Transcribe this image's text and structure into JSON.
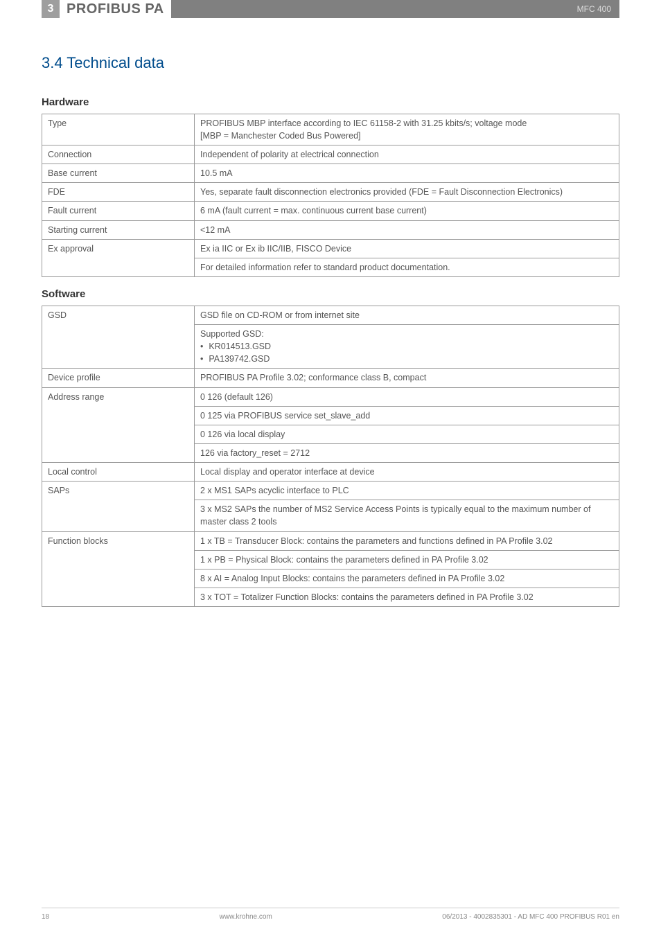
{
  "header": {
    "chapter_number": "3",
    "chapter_title": "PROFIBUS PA",
    "doc_code": "MFC 400"
  },
  "section": {
    "heading": "3.4  Technical data"
  },
  "hardware": {
    "heading": "Hardware",
    "rows": [
      {
        "label": "Type",
        "value": "PROFIBUS MBP interface according to IEC 61158-2 with 31.25 kbits/s; voltage mode\n[MBP = Manchester Coded Bus Powered]"
      },
      {
        "label": "Connection",
        "value": "Independent of polarity at electrical connection"
      },
      {
        "label": "Base current",
        "value": "10.5 mA"
      },
      {
        "label": "FDE",
        "value": "Yes, separate fault disconnection electronics provided (FDE = Fault Disconnection Electronics)"
      },
      {
        "label": "Fault current",
        "value": "6 mA (fault current = max. continuous current  base current)"
      },
      {
        "label": "Starting current",
        "value": "<12 mA"
      },
      {
        "label": "Ex approval",
        "value": "Ex ia IIC or Ex ib IIC/IIB, FISCO Device"
      },
      {
        "label": "",
        "value": "For detailed information refer to standard product documentation."
      }
    ]
  },
  "software": {
    "heading": "Software",
    "gsd_label": "GSD",
    "gsd_value": "GSD file on CD-ROM or from internet site",
    "gsd_supported_intro": "Supported GSD:",
    "gsd_files": [
      "KR014513.GSD",
      "PA139742.GSD"
    ],
    "device_profile_label": "Device profile",
    "device_profile_value": "PROFIBUS PA Profile 3.02; conformance class B, compact",
    "address_range_label": "Address range",
    "address_rows": [
      "0  126 (default 126)",
      "0  125 via PROFIBUS service set_slave_add",
      "0  126 via local display",
      "126 via factory_reset = 2712"
    ],
    "local_control_label": "Local control",
    "local_control_value": "Local display and operator interface at device",
    "saps_label": "SAPs",
    "saps_rows": [
      "2 x MS1 SAPs  acyclic interface to PLC",
      "3 x MS2 SAPs  the number of MS2 Service Access Points is typically equal to the maximum number of master class 2 tools"
    ],
    "function_blocks_label": "Function blocks",
    "function_blocks_rows": [
      "1 x TB = Transducer Block: contains the parameters and functions defined in PA Profile 3.02",
      "1 x PB = Physical Block: contains the parameters defined in PA Profile 3.02",
      "8 x AI = Analog Input Blocks: contains the parameters defined in PA Profile 3.02",
      "3 x TOT = Totalizer Function Blocks: contains the parameters defined in PA Profile 3.02"
    ]
  },
  "footer": {
    "page": "18",
    "site": "www.krohne.com",
    "docref": "06/2013 - 4002835301 - AD MFC 400 PROFIBUS R01 en"
  }
}
